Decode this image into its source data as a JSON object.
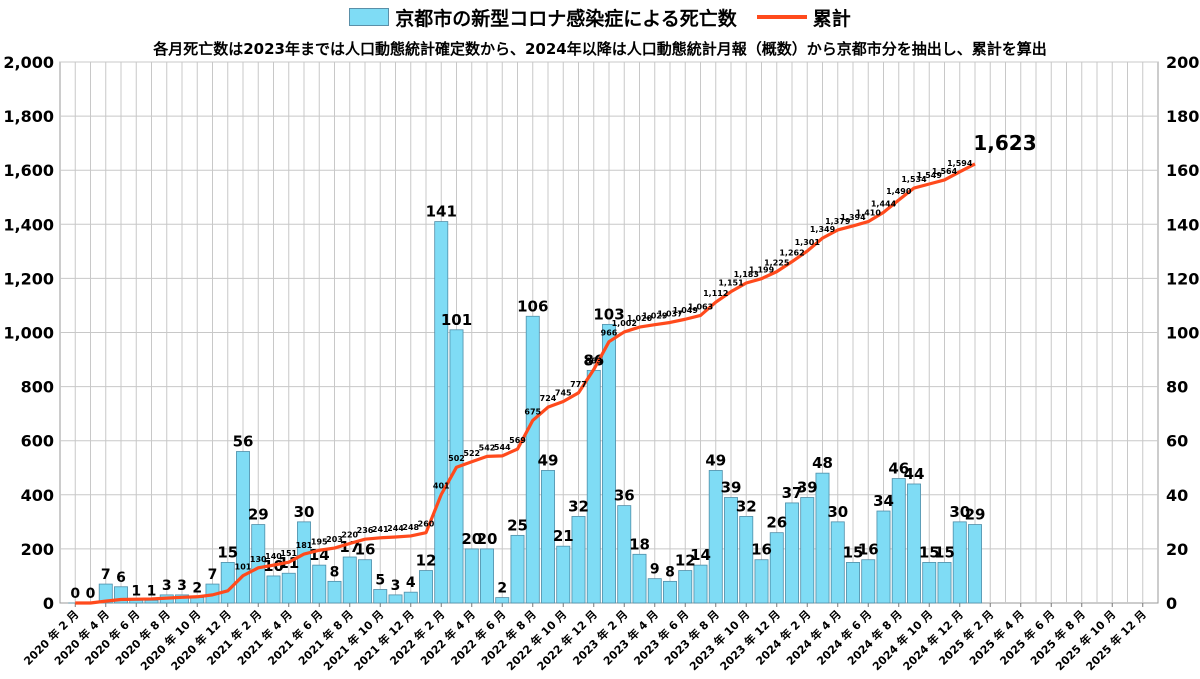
{
  "chart_data": {
    "type": "bar",
    "legend": [
      {
        "name": "京都市の新型コロナ感染症による死亡数",
        "type": "bar",
        "color": "#7fdcf5"
      },
      {
        "name": "累計",
        "type": "line",
        "color": "#ff4a1c"
      }
    ],
    "subtitle": "各月死亡数は2023年までは人口動態統計確定数から、2024年以降は人口動態統計月報（概数）から京都市分を抽出し、累計を算出",
    "categories": [
      "2020年2月",
      "2020年3月",
      "2020年4月",
      "2020年5月",
      "2020年6月",
      "2020年7月",
      "2020年8月",
      "2020年9月",
      "2020年10月",
      "2020年11月",
      "2020年12月",
      "2021年1月",
      "2021年2月",
      "2021年3月",
      "2021年4月",
      "2021年5月",
      "2021年6月",
      "2021年7月",
      "2021年8月",
      "2021年9月",
      "2021年10月",
      "2021年11月",
      "2021年12月",
      "2022年1月",
      "2022年2月",
      "2022年3月",
      "2022年4月",
      "2022年5月",
      "2022年6月",
      "2022年7月",
      "2022年8月",
      "2022年9月",
      "2022年10月",
      "2022年11月",
      "2022年12月",
      "2023年1月",
      "2023年2月",
      "2023年3月",
      "2023年4月",
      "2023年5月",
      "2023年6月",
      "2023年7月",
      "2023年8月",
      "2023年9月",
      "2023年10月",
      "2023年11月",
      "2023年12月",
      "2024年1月",
      "2024年2月",
      "2024年3月",
      "2024年4月",
      "2024年5月",
      "2024年6月",
      "2024年7月",
      "2024年8月",
      "2024年9月",
      "2024年10月",
      "2024年11月",
      "2024年12月",
      "2025年1月",
      "2025年2月",
      "2025年3月",
      "2025年4月",
      "2025年5月",
      "2025年6月",
      "2025年7月",
      "2025年8月",
      "2025年9月",
      "2025年10月",
      "2025年11月",
      "2025年12月"
    ],
    "x_tick_labels": [
      "2020 年 2 月",
      "2020 年 4 月",
      "2020 年 6 月",
      "2020 年 8 月",
      "2020 年 10 月",
      "2020 年 12 月",
      "2021 年 2 月",
      "2021 年 4 月",
      "2021 年 6 月",
      "2021 年 8 月",
      "2021 年 10 月",
      "2021 年 12 月",
      "2022 年 2 月",
      "2022 年 4 月",
      "2022 年 6 月",
      "2022 年 8 月",
      "2022 年 10 月",
      "2022 年 12 月",
      "2023 年 2 月",
      "2023 年 4 月",
      "2023 年 6 月",
      "2023 年 8 月",
      "2023 年 10 月",
      "2023 年 12 月",
      "2024 年 2 月",
      "2024 年 4 月",
      "2024 年 6 月",
      "2024 年 8 月",
      "2024 年 10 月",
      "2024 年 12 月",
      "2025 年 2 月",
      "2025 年 4 月",
      "2025 年 6 月",
      "2025 年 8 月",
      "2025 年 10 月",
      "2025 年 12 月"
    ],
    "monthly": [
      0,
      0,
      7,
      6,
      1,
      1,
      3,
      3,
      2,
      7,
      15,
      56,
      29,
      10,
      11,
      30,
      14,
      8,
      17,
      16,
      5,
      3,
      4,
      12,
      141,
      101,
      20,
      20,
      2,
      25,
      106,
      49,
      21,
      32,
      86,
      103,
      36,
      18,
      9,
      8,
      12,
      14,
      49,
      39,
      32,
      16,
      26,
      37,
      39,
      48,
      30,
      15,
      16,
      34,
      46,
      44,
      15,
      15,
      30,
      29
    ],
    "cumulative": [
      0,
      0,
      7,
      13,
      14,
      15,
      18,
      21,
      23,
      30,
      45,
      101,
      130,
      140,
      151,
      181,
      195,
      203,
      220,
      236,
      241,
      244,
      248,
      260,
      401,
      502,
      522,
      542,
      544,
      569,
      675,
      724,
      745,
      777,
      863,
      966,
      1002,
      1020,
      1029,
      1037,
      1049,
      1063,
      1112,
      1151,
      1183,
      1199,
      1225,
      1262,
      1301,
      1349,
      1379,
      1394,
      1410,
      1444,
      1490,
      1534,
      1549,
      1564,
      1594,
      1623
    ],
    "monthly_labels_shown": [
      "0",
      "0",
      "7",
      "6",
      "1",
      "1",
      "3",
      "3",
      "2",
      "7",
      "15",
      "56",
      "29",
      "10",
      "11",
      "30",
      "14",
      "8",
      "17",
      "16",
      "5",
      "3",
      "4",
      "12",
      "141",
      "101",
      "20",
      "20",
      "2",
      "25",
      "106",
      "49",
      "21",
      "32",
      "86",
      "103",
      "36",
      "18",
      "9",
      "8",
      "12",
      "14",
      "49",
      "39",
      "32",
      "16",
      "26",
      "37",
      "39",
      "48",
      "30",
      "15",
      "16",
      "34",
      "46",
      "44",
      "15",
      "15",
      "30",
      "29"
    ],
    "cumulative_labels_shown": [
      "101",
      "130",
      "140",
      "151",
      "181",
      "195",
      "203",
      "220",
      "236",
      "241",
      "244",
      "248",
      "260",
      "401",
      "502",
      "522",
      "542",
      "544",
      "569",
      "675",
      "724",
      "745",
      "777",
      "863",
      "966",
      "1,002",
      "1,020",
      "1,029",
      "1,037",
      "1,049",
      "1,063",
      "1,112",
      "1,151",
      "1,183",
      "1,199",
      "1,225",
      "1,262",
      "1,301",
      "1,349",
      "1,379",
      "1,394",
      "1,410",
      "1,444",
      "1,490",
      "1,534",
      "1,549",
      "1,564",
      "1,594"
    ],
    "final_cumulative_label": "1,623",
    "y_left_ticks": [
      "0",
      "200",
      "400",
      "600",
      "800",
      "1,000",
      "1,200",
      "1,400",
      "1,600",
      "1,800",
      "2,000"
    ],
    "y_right_ticks": [
      "0",
      "20",
      "40",
      "60",
      "80",
      "100",
      "120",
      "140",
      "160",
      "180",
      "200"
    ],
    "y_left_range": [
      0,
      2000
    ],
    "y_right_range": [
      0,
      200
    ],
    "grid": true,
    "colors": {
      "bar": "#7fdcf5",
      "bar_edge": "#4f8ea8",
      "line": "#ff4a1c",
      "grid": "#c8c8c8"
    }
  }
}
